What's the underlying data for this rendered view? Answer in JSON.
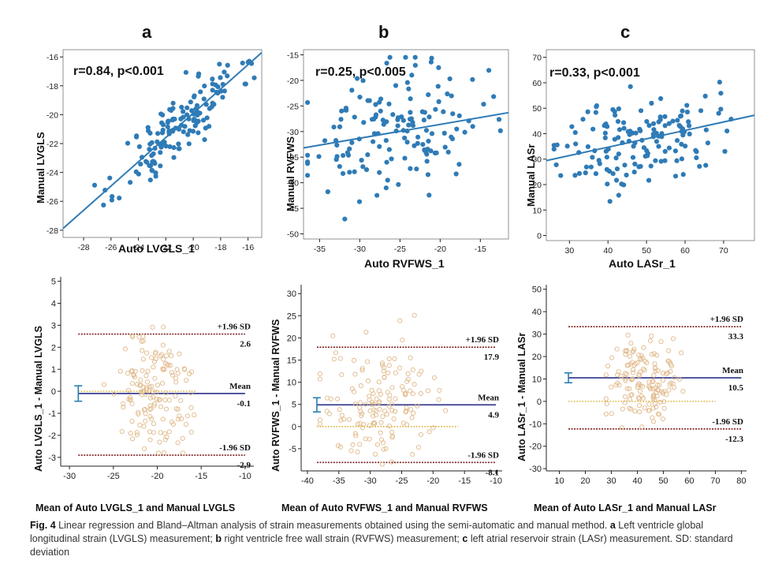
{
  "figure": {
    "caption_label": "Fig. 4",
    "caption_text": "Linear regression and Bland–Altman analysis of strain measurements obtained using the semi-automatic and manual method.",
    "caption_a_letter": "a",
    "caption_a_text": "Left ventricle global longitudinal strain (LVGLS) measurement;",
    "caption_b_letter": "b",
    "caption_b_text": "right ventricle free wall strain (RVFWS) measurement;",
    "caption_c_letter": "c",
    "caption_c_text": "left atrial reservoir strain (LASr) measurement. SD: standard deviation"
  },
  "chart_data": [
    {
      "id": "scatter_a",
      "type": "scatter",
      "panel_letter": "a",
      "xlabel": "Auto LVGLS_1",
      "ylabel": "Manual LVGLS",
      "annotation": "r=0.84, p<0.001",
      "xlim": [
        -29.5,
        -15
      ],
      "ylim": [
        -28.5,
        -15.5
      ],
      "xticks": [
        -28,
        -26,
        -24,
        -22,
        -20,
        -18,
        -16
      ],
      "yticks": [
        -28,
        -26,
        -24,
        -22,
        -20,
        -18,
        -16
      ],
      "regression": {
        "slope": 0.84,
        "intercept": -3.1
      },
      "n_points": 150,
      "center": [
        -21.0,
        -20.8
      ],
      "x_sd": 2.2,
      "noise_sd": 1.2,
      "seed": 11,
      "x_range": [
        -29,
        -15.5
      ],
      "y_range": [
        -28.2,
        -16.3
      ]
    },
    {
      "id": "scatter_b",
      "type": "scatter",
      "panel_letter": "b",
      "xlabel": "Auto RVFWS_1",
      "ylabel": "Manual RVFWS",
      "annotation": "r=0.25, p<0.005",
      "xlim": [
        -37,
        -11.5
      ],
      "ylim": [
        -51,
        -14
      ],
      "xticks": [
        -35,
        -30,
        -25,
        -20,
        -15
      ],
      "yticks": [
        -50,
        -45,
        -40,
        -35,
        -30,
        -25,
        -20,
        -15
      ],
      "regression": {
        "slope": 0.27,
        "intercept": -23.2
      },
      "n_points": 150,
      "center": [
        -26.0,
        -30.2
      ],
      "x_sd": 5.5,
      "noise_sd": 6.0,
      "seed": 23,
      "x_range": [
        -36.5,
        -12.5
      ],
      "y_range": [
        -49,
        -15.5
      ]
    },
    {
      "id": "scatter_c",
      "type": "scatter",
      "panel_letter": "c",
      "xlabel": "Auto LASr_1",
      "ylabel": "Manual LASr",
      "annotation": "r=0.33, p<0.001",
      "xlim": [
        24,
        78
      ],
      "ylim": [
        -2,
        73
      ],
      "xticks": [
        30,
        40,
        50,
        60,
        70
      ],
      "yticks": [
        0,
        10,
        20,
        30,
        40,
        50,
        60,
        70
      ],
      "regression": {
        "slope": 0.33,
        "intercept": 21.5
      },
      "n_points": 150,
      "center": [
        48.0,
        37.3
      ],
      "x_sd": 10.0,
      "noise_sd": 9.0,
      "seed": 37,
      "x_range": [
        26,
        77
      ],
      "y_range": [
        2,
        71
      ]
    },
    {
      "id": "ba_a",
      "type": "scatter",
      "subtype": "bland-altman",
      "xlabel": "Mean of Auto LVGLS_1 and  Manual LVGLS",
      "ylabel": "Auto LVGLS_1 - Manual LVGLS",
      "xlim": [
        -31,
        -9
      ],
      "ylim": [
        -3.4,
        5.2
      ],
      "xticks": [
        -30,
        -25,
        -20,
        -15,
        -10
      ],
      "yticks": [
        -3,
        -2,
        -1,
        0,
        1,
        2,
        3,
        4,
        5
      ],
      "upper": 2.6,
      "mean": -0.1,
      "lower": -2.9,
      "zero": 0,
      "upper_label": "+1.96 SD",
      "mean_label": "Mean",
      "lower_label": "-1.96 SD",
      "upper_value": "2.6",
      "mean_value": "-0.1",
      "lower_value": "-2.9",
      "mean_ci": [
        -0.45,
        0.25
      ],
      "ci_x": -29,
      "line_x_range": [
        -29,
        -15.5
      ],
      "hline_x_range": [
        -29,
        -10
      ],
      "n_points": 150,
      "center": [
        -20.5,
        -0.1
      ],
      "x_sd": 2.2,
      "noise_sd": 1.4,
      "seed": 51,
      "x_range": [
        -27,
        -15.8
      ],
      "y_range": [
        -2.8,
        4.6
      ]
    },
    {
      "id": "ba_b",
      "type": "scatter",
      "subtype": "bland-altman",
      "xlabel": "Mean of Auto RVFWS_1 and  Manual RVFWS",
      "ylabel": "Auto RVFWS_1 - Manual RVFWS",
      "xlim": [
        -41,
        -9
      ],
      "ylim": [
        -10,
        32
      ],
      "xticks": [
        -40,
        -35,
        -30,
        -25,
        -20,
        -15,
        -10
      ],
      "yticks": [
        -5,
        0,
        5,
        10,
        15,
        20,
        25,
        30
      ],
      "upper": 17.9,
      "mean": 4.9,
      "lower": -8.1,
      "zero": 0,
      "upper_label": "+1.96 SD",
      "mean_label": "Mean",
      "lower_label": "-1.96 SD",
      "upper_value": "17.9",
      "mean_value": "4.9",
      "lower_value": "-8.1",
      "mean_ci": [
        3.3,
        6.5
      ],
      "ci_x": -38.5,
      "line_x_range": [
        -38.5,
        -16
      ],
      "hline_x_range": [
        -38.5,
        -10
      ],
      "n_points": 150,
      "center": [
        -28.5,
        5.5
      ],
      "x_sd": 4.0,
      "noise_sd": 6.5,
      "seed": 63,
      "x_range": [
        -38,
        -17.5
      ],
      "y_range": [
        -8.5,
        29.5
      ]
    },
    {
      "id": "ba_c",
      "type": "scatter",
      "subtype": "bland-altman",
      "xlabel": "Mean of Auto LASr_1 and  Manual LASr",
      "ylabel": "Auto LASr_1 - Manual LASr",
      "xlim": [
        5,
        82
      ],
      "ylim": [
        -31,
        52
      ],
      "xticks": [
        10,
        20,
        30,
        40,
        50,
        60,
        70,
        80
      ],
      "yticks": [
        -30,
        -20,
        -10,
        0,
        10,
        20,
        30,
        40,
        50
      ],
      "upper": 33.3,
      "mean": 10.5,
      "lower": -12.3,
      "zero": 0,
      "upper_label": "+1.96 SD",
      "mean_label": "Mean",
      "lower_label": "-1.96 SD",
      "upper_value": "33.3",
      "mean_value": "10.5",
      "lower_value": "-12.3",
      "mean_ci": [
        8.3,
        12.7
      ],
      "ci_x": 13.5,
      "line_x_range": [
        13.5,
        70
      ],
      "hline_x_range": [
        13.5,
        80
      ],
      "n_points": 150,
      "center": [
        42.5,
        10.5
      ],
      "x_sd": 7.0,
      "noise_sd": 9.0,
      "seed": 79,
      "x_range": [
        28,
        66
      ],
      "y_range": [
        -24,
        43
      ]
    }
  ],
  "colors": {
    "scatter_point": "#2f7bb6",
    "regression_line": "#2f7bb6",
    "ba_point": "#e0b98a",
    "mean_line": "#3a3f8f",
    "limit_line": "#7a1f1f",
    "zero_line": "#d4a000",
    "axis": "#222222"
  }
}
